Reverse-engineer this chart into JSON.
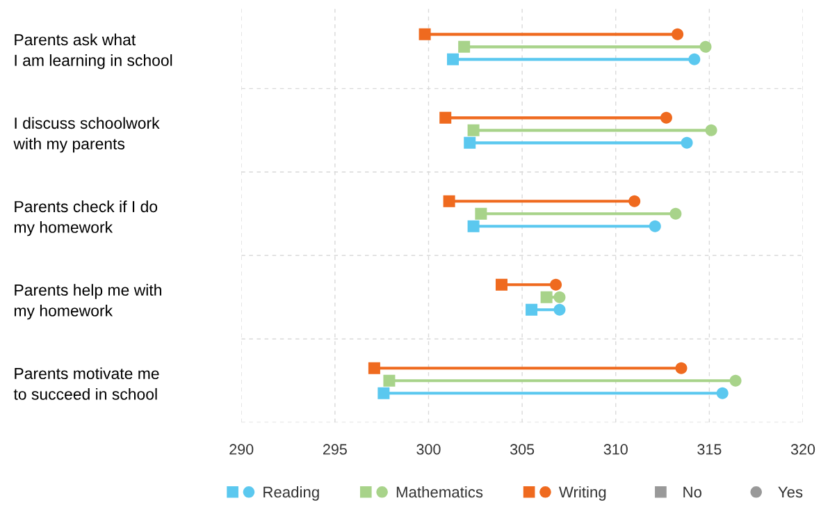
{
  "chart_data": {
    "type": "scatter",
    "orientation": "horizontal",
    "categories": [
      "Parents ask what\nI am learning in school",
      "I discuss schoolwork\nwith my parents",
      "Parents check if I do\nmy homework",
      "Parents help me with\nmy homework",
      "Parents motivate me\nto succeed in school"
    ],
    "series": [
      {
        "name": "Reading",
        "color": "#5bc8ef",
        "marker": "square",
        "values": [
          301.3,
          302.2,
          302.4,
          305.5,
          297.6
        ]
      },
      {
        "color": "#5bc8ef",
        "marker": "circle",
        "values": [
          314.2,
          313.8,
          312.1,
          307.0,
          315.7
        ]
      },
      {
        "name": "Mathematics",
        "color": "#a8d38a",
        "marker": "square",
        "values": [
          301.9,
          302.4,
          302.8,
          306.3,
          297.9
        ]
      },
      {
        "color": "#a8d38a",
        "marker": "circle",
        "values": [
          314.8,
          315.1,
          313.2,
          307.0,
          316.4
        ]
      },
      {
        "name": "Writing",
        "color": "#ef6a1f",
        "marker": "square",
        "values": [
          299.8,
          300.9,
          301.1,
          303.9,
          297.1
        ]
      },
      {
        "color": "#ef6a1f",
        "marker": "circle",
        "values": [
          313.3,
          312.7,
          311.0,
          306.8,
          313.5
        ]
      },
      {
        "name": "No",
        "color": "#999999",
        "marker": "square",
        "values": [
          null,
          null,
          null,
          null,
          null
        ]
      },
      {
        "name": "Yes",
        "color": "#999999",
        "marker": "circle",
        "values": [
          null,
          null,
          null,
          null,
          null
        ]
      }
    ],
    "xlim": [
      290,
      320
    ],
    "xticks": [
      290,
      295,
      300,
      305,
      310,
      315,
      320
    ],
    "grid": true,
    "legend": "bottom"
  }
}
